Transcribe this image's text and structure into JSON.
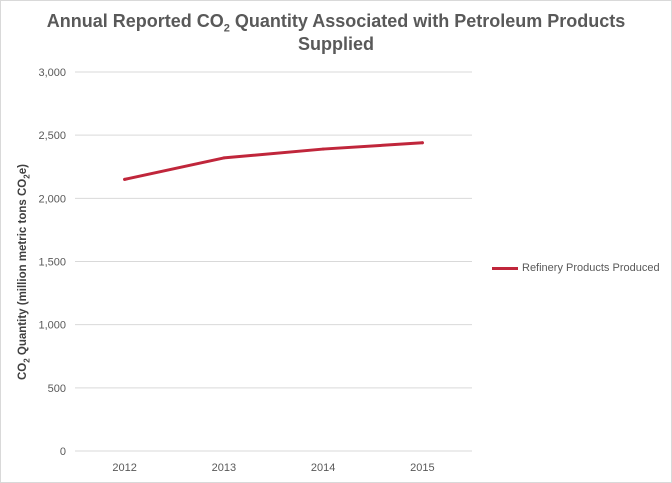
{
  "colors": {
    "series": "#c0263b",
    "grid": "#d9d9d9",
    "text": "#595959"
  },
  "title": {
    "part1": "Annual Reported CO",
    "sub": "2",
    "part2": " Quantity Associated with Petroleum Products Supplied"
  },
  "ylabel": {
    "part1": "CO",
    "sub1": "2",
    "part2": " Quantity (million metric tons CO",
    "sub2": "2",
    "part3": "e)"
  },
  "chart_data": {
    "type": "line",
    "title": "Annual Reported CO2 Quantity Associated with Petroleum Products Supplied",
    "xlabel": "",
    "ylabel": "CO2 Quantity (million metric tons CO2e)",
    "categories": [
      "2012",
      "2013",
      "2014",
      "2015"
    ],
    "series": [
      {
        "name": "Refinery Products Produced",
        "values": [
          2150,
          2320,
          2390,
          2440
        ]
      }
    ],
    "ylim": [
      0,
      3000
    ],
    "yticks": [
      0,
      500,
      1000,
      1500,
      2000,
      2500,
      3000
    ],
    "ytick_labels": [
      "0",
      "500",
      "1,000",
      "1,500",
      "2,000",
      "2,500",
      "3,000"
    ],
    "grid": true,
    "legend": "right"
  }
}
